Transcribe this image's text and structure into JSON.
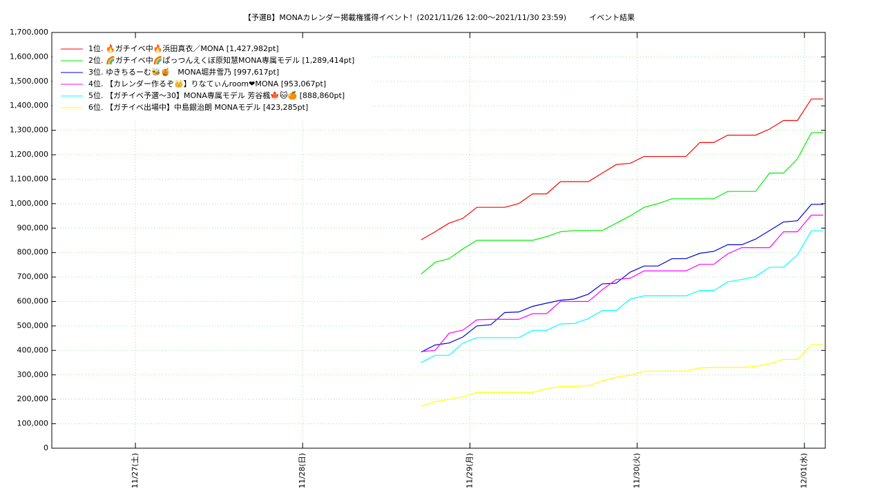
{
  "chart_data": {
    "type": "line",
    "title": "【予選B】MONAカレンダー掲載権獲得イベント！(2021/11/26 12:00〜2021/11/30 23:59)　　　イベント結果",
    "x": [
      41,
      43,
      45,
      47,
      49,
      51,
      53,
      55,
      57,
      59,
      61,
      63,
      65,
      67,
      69,
      71,
      73,
      75,
      77,
      79,
      81,
      83,
      85,
      87,
      89,
      91,
      93,
      95,
      97,
      98.7
    ],
    "xlim": [
      -12,
      99
    ],
    "xticks": [
      {
        "value": 0,
        "label": "11/27(土)"
      },
      {
        "value": 24,
        "label": "11/28(日)"
      },
      {
        "value": 48,
        "label": "11/29(月)"
      },
      {
        "value": 72,
        "label": "11/30(火)"
      },
      {
        "value": 96,
        "label": "12/01(水)"
      }
    ],
    "ylim": [
      0,
      1700000
    ],
    "yticks": [
      0,
      {
        "value": 100000,
        "label": "100,000"
      },
      {
        "value": 200000,
        "label": "200,000"
      },
      {
        "value": 300000,
        "label": "300,000"
      },
      {
        "value": 400000,
        "label": "400,000"
      },
      {
        "value": 500000,
        "label": "500,000"
      },
      {
        "value": 600000,
        "label": "600,000"
      },
      {
        "value": 700000,
        "label": "700,000"
      },
      {
        "value": 800000,
        "label": "800,000"
      },
      {
        "value": 900000,
        "label": "900,000"
      },
      {
        "value": 1000000,
        "label": "1,000,000"
      },
      {
        "value": 1100000,
        "label": "1,100,000"
      },
      {
        "value": 1200000,
        "label": "1,200,000"
      },
      {
        "value": 1300000,
        "label": "1,300,000"
      },
      {
        "value": 1400000,
        "label": "1,400,000"
      },
      {
        "value": 1500000,
        "label": "1,500,000"
      },
      {
        "value": 1600000,
        "label": "1,600,000"
      },
      {
        "value": 1700000,
        "label": "1,700,000"
      }
    ],
    "grid": true,
    "legend": "upper-left",
    "series": [
      {
        "name": "1位. 🔥ガチイベ中🔥浜田真衣／MONA [1,427,982pt]",
        "color": "#ff0000",
        "values": [
          852000,
          885000,
          920000,
          940000,
          985000,
          985000,
          985000,
          1000000,
          1040000,
          1040000,
          1090000,
          1090000,
          1090000,
          1125000,
          1160000,
          1165000,
          1193000,
          1193000,
          1193000,
          1193000,
          1250000,
          1250000,
          1280000,
          1280000,
          1280000,
          1305000,
          1340000,
          1340000,
          1428000,
          1428000
        ]
      },
      {
        "name": "2位. 🌈ガチイベ中🌈ぱっつんえくぼ原知慧MONA専属モデル [1,289,414pt]",
        "color": "#00ee00",
        "values": [
          712000,
          760000,
          775000,
          815000,
          850000,
          850000,
          850000,
          850000,
          850000,
          865000,
          885000,
          890000,
          890000,
          890000,
          920000,
          950000,
          985000,
          1000000,
          1020000,
          1020000,
          1020000,
          1020000,
          1050000,
          1050000,
          1050000,
          1125000,
          1125000,
          1183000,
          1290000,
          1290000
        ]
      },
      {
        "name": "3位. ゆきちるーむ🐝🍯　MONA堀井雪乃 [997,617pt]",
        "color": "#0000dd",
        "values": [
          393000,
          422000,
          430000,
          455000,
          500000,
          505000,
          555000,
          557000,
          580000,
          593000,
          605000,
          610000,
          630000,
          672000,
          675000,
          720000,
          745000,
          745000,
          775000,
          775000,
          797000,
          805000,
          832000,
          832000,
          855000,
          890000,
          925000,
          930000,
          997000,
          997000
        ]
      },
      {
        "name": "4位. 【カレンダー作るぞ👑】りなてぃんroom❤MONA [953,067pt]",
        "color": "#ff00ff",
        "values": [
          395000,
          400000,
          470000,
          483000,
          525000,
          527000,
          527000,
          527000,
          550000,
          550000,
          600000,
          600000,
          600000,
          648000,
          690000,
          695000,
          725000,
          725000,
          725000,
          725000,
          752000,
          752000,
          795000,
          820000,
          820000,
          820000,
          885000,
          885000,
          953000,
          953000
        ]
      },
      {
        "name": "5位. 【ガチイベ予選〜30】MONA専属モデル 芳谷楓🍁🐱🍊 [888,860pt]",
        "color": "#00ffff",
        "values": [
          350000,
          380000,
          380000,
          430000,
          452000,
          452000,
          452000,
          452000,
          482000,
          482000,
          508000,
          510000,
          530000,
          563000,
          563000,
          610000,
          623000,
          623000,
          623000,
          623000,
          645000,
          645000,
          680000,
          690000,
          702000,
          740000,
          740000,
          790000,
          889000,
          889000
        ]
      },
      {
        "name": "6位. 【ガチイベ出場中】中島銀治朗 MONAモデル [423,285pt]",
        "color": "#ffff00",
        "values": [
          172000,
          190000,
          200000,
          210000,
          228000,
          228000,
          228000,
          228000,
          228000,
          243000,
          253000,
          253000,
          255000,
          275000,
          290000,
          298000,
          315000,
          315000,
          315000,
          315000,
          328000,
          330000,
          330000,
          330000,
          335000,
          345000,
          363000,
          363000,
          423000,
          423000
        ]
      }
    ]
  }
}
